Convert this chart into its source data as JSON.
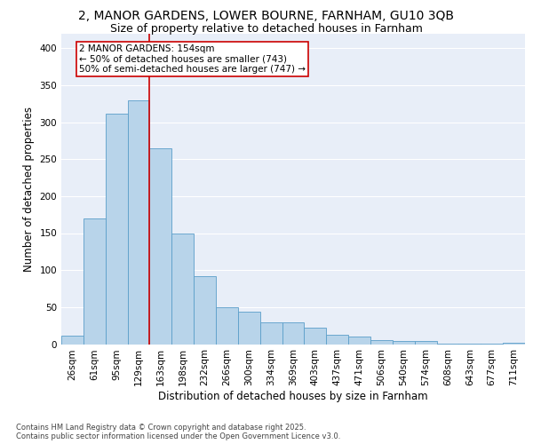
{
  "title_line1": "2, MANOR GARDENS, LOWER BOURNE, FARNHAM, GU10 3QB",
  "title_line2": "Size of property relative to detached houses in Farnham",
  "xlabel": "Distribution of detached houses by size in Farnham",
  "ylabel": "Number of detached properties",
  "categories": [
    "26sqm",
    "61sqm",
    "95sqm",
    "129sqm",
    "163sqm",
    "198sqm",
    "232sqm",
    "266sqm",
    "300sqm",
    "334sqm",
    "369sqm",
    "403sqm",
    "437sqm",
    "471sqm",
    "506sqm",
    "540sqm",
    "574sqm",
    "608sqm",
    "643sqm",
    "677sqm",
    "711sqm"
  ],
  "values": [
    12,
    170,
    311,
    330,
    265,
    150,
    92,
    50,
    44,
    30,
    30,
    22,
    13,
    10,
    5,
    4,
    4,
    1,
    1,
    1,
    2
  ],
  "bar_color": "#b8d4ea",
  "bar_edge_color": "#5b9ec9",
  "vline_x": 3.5,
  "vline_color": "#cc0000",
  "annotation_text": "2 MANOR GARDENS: 154sqm\n← 50% of detached houses are smaller (743)\n50% of semi-detached houses are larger (747) →",
  "annotation_box_facecolor": "#ffffff",
  "annotation_box_edgecolor": "#cc0000",
  "ylim": [
    0,
    420
  ],
  "yticks": [
    0,
    50,
    100,
    150,
    200,
    250,
    300,
    350,
    400
  ],
  "background_color": "#e8eef8",
  "grid_color": "#ffffff",
  "footer_text": "Contains HM Land Registry data © Crown copyright and database right 2025.\nContains public sector information licensed under the Open Government Licence v3.0.",
  "title_fontsize": 10,
  "subtitle_fontsize": 9,
  "tick_fontsize": 7,
  "ylabel_fontsize": 8.5,
  "xlabel_fontsize": 8.5,
  "footer_fontsize": 6,
  "ann_fontsize": 7.5
}
